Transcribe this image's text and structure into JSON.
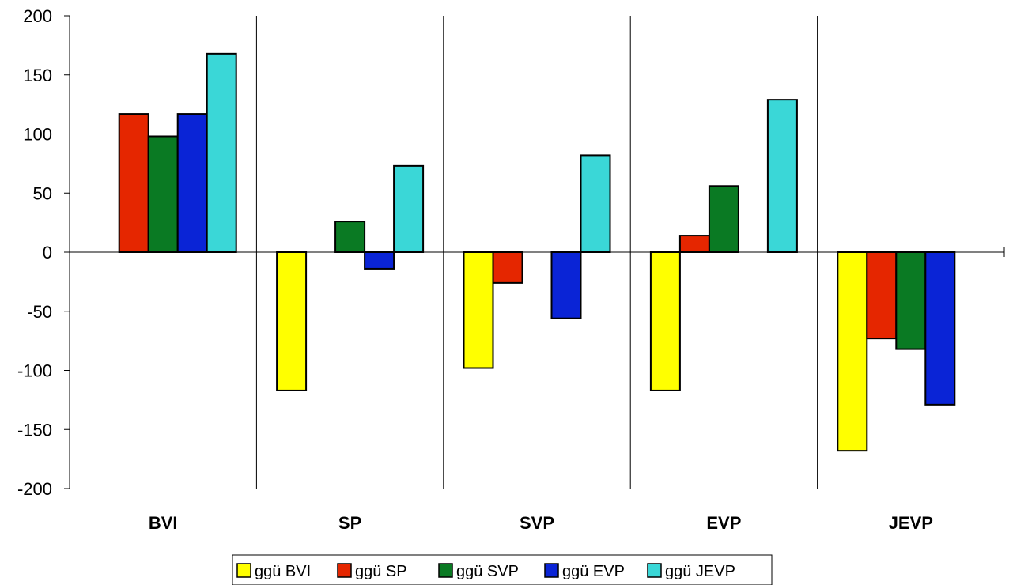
{
  "chart_data": {
    "type": "bar",
    "title": "",
    "xlabel": "",
    "ylabel": "",
    "ylim": [
      -200,
      200
    ],
    "yticks": [
      200,
      150,
      100,
      50,
      0,
      -50,
      -100,
      -150,
      -200
    ],
    "categories": [
      "BVI",
      "SP",
      "SVP",
      "EVP",
      "JEVP"
    ],
    "grid": "vertical category separators only",
    "legend_position": "bottom",
    "series": [
      {
        "name": "ggü BVI",
        "color": "#ffff00",
        "values": [
          0,
          -117,
          -98,
          -117,
          -168
        ]
      },
      {
        "name": "ggü SP",
        "color": "#e52600",
        "values": [
          117,
          0,
          -26,
          14,
          -73
        ]
      },
      {
        "name": "ggü SVP",
        "color": "#0a7a23",
        "values": [
          98,
          26,
          0,
          56,
          -82
        ]
      },
      {
        "name": "ggü EVP",
        "color": "#0a24d6",
        "values": [
          117,
          -14,
          -56,
          0,
          -129
        ]
      },
      {
        "name": "ggü JEVP",
        "color": "#3ad7d7",
        "values": [
          168,
          73,
          82,
          129,
          0
        ]
      }
    ]
  }
}
